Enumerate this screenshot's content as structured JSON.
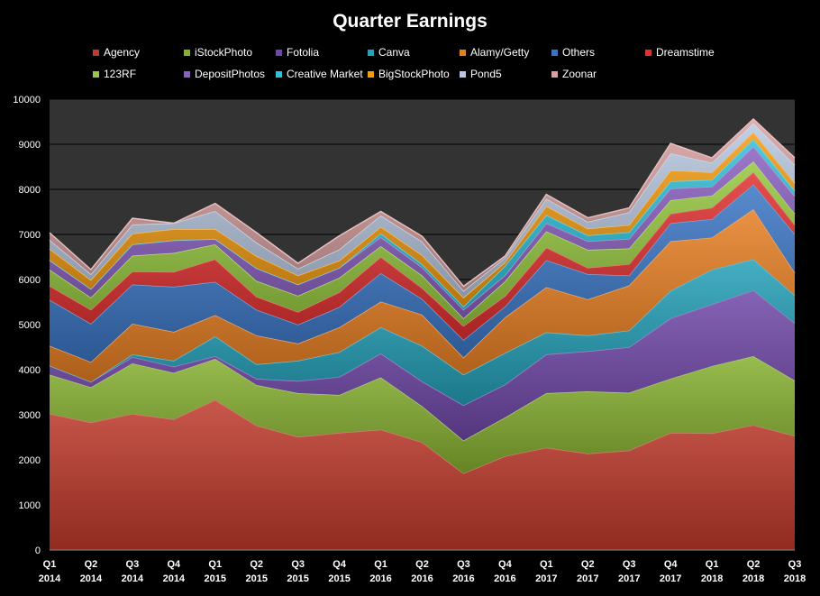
{
  "chart_data": {
    "type": "area",
    "stacked": true,
    "title": "Quarter Earnings",
    "xlabel": "",
    "ylabel": "",
    "ylim": [
      0,
      10000
    ],
    "yticks": [
      0,
      1000,
      2000,
      3000,
      4000,
      5000,
      6000,
      7000,
      8000,
      9000,
      10000
    ],
    "grid": "horizontal",
    "legend_position": "top",
    "plot_background": "#333333",
    "categories": [
      [
        "Q1",
        "2014"
      ],
      [
        "Q2",
        "2014"
      ],
      [
        "Q3",
        "2014"
      ],
      [
        "Q4",
        "2014"
      ],
      [
        "Q1",
        "2015"
      ],
      [
        "Q2",
        "2015"
      ],
      [
        "Q3",
        "2015"
      ],
      [
        "Q4",
        "2015"
      ],
      [
        "Q1",
        "2016"
      ],
      [
        "Q2",
        "2016"
      ],
      [
        "Q3",
        "2016"
      ],
      [
        "Q4",
        "2016"
      ],
      [
        "Q1",
        "2017"
      ],
      [
        "Q2",
        "2017"
      ],
      [
        "Q3",
        "2017"
      ],
      [
        "Q4",
        "2017"
      ],
      [
        "Q1",
        "2018"
      ],
      [
        "Q2",
        "2018"
      ],
      [
        "Q3",
        "2018"
      ]
    ],
    "series": [
      {
        "name": "Agency",
        "color": "#c0392b",
        "values": [
          3020,
          2830,
          3020,
          2900,
          3330,
          2760,
          2510,
          2600,
          2670,
          2390,
          1700,
          2080,
          2270,
          2140,
          2210,
          2600,
          2590,
          2770,
          2530
        ]
      },
      {
        "name": "iStockPhoto",
        "color": "#86b030",
        "values": [
          870,
          780,
          1120,
          1030,
          910,
          900,
          970,
          840,
          1160,
          800,
          730,
          860,
          1210,
          1380,
          1280,
          1200,
          1490,
          1530,
          1230
        ]
      },
      {
        "name": "Fotolia",
        "color": "#7048a8",
        "values": [
          200,
          120,
          140,
          140,
          60,
          140,
          270,
          400,
          530,
          550,
          780,
          730,
          860,
          890,
          1010,
          1340,
          1370,
          1460,
          1270
        ]
      },
      {
        "name": "Canva",
        "color": "#24a0b8",
        "values": [
          0,
          0,
          60,
          130,
          440,
          320,
          450,
          550,
          580,
          790,
          680,
          700,
          490,
          350,
          370,
          610,
          770,
          690,
          620
        ]
      },
      {
        "name": "Alamy/Getty",
        "color": "#e67e22",
        "values": [
          440,
          440,
          680,
          640,
          470,
          640,
          380,
          550,
          570,
          690,
          380,
          790,
          1000,
          800,
          1000,
          1100,
          710,
          1110,
          500
        ]
      },
      {
        "name": "Others",
        "color": "#3a75c4",
        "values": [
          1020,
          850,
          870,
          1000,
          740,
          570,
          420,
          450,
          630,
          350,
          390,
          240,
          600,
          560,
          220,
          400,
          410,
          550,
          860
        ]
      },
      {
        "name": "Dreamstime",
        "color": "#e03030",
        "values": [
          310,
          310,
          290,
          330,
          500,
          290,
          280,
          330,
          360,
          240,
          310,
          230,
          280,
          140,
          250,
          210,
          250,
          270,
          200
        ]
      },
      {
        "name": "123RF",
        "color": "#96c840",
        "values": [
          360,
          270,
          350,
          420,
          330,
          350,
          360,
          320,
          240,
          280,
          170,
          330,
          360,
          400,
          350,
          300,
          270,
          240,
          250
        ]
      },
      {
        "name": "DepositPhotos",
        "color": "#8a60c0",
        "values": [
          210,
          190,
          250,
          280,
          120,
          280,
          250,
          220,
          200,
          180,
          190,
          130,
          180,
          190,
          210,
          260,
          200,
          330,
          390
        ]
      },
      {
        "name": "Creative Market",
        "color": "#30c0d8",
        "values": [
          0,
          0,
          0,
          0,
          0,
          0,
          0,
          0,
          80,
          70,
          70,
          210,
          180,
          130,
          150,
          160,
          150,
          160,
          120
        ]
      },
      {
        "name": "BigStockPhoto",
        "color": "#f39c12",
        "values": [
          250,
          200,
          240,
          250,
          220,
          270,
          200,
          160,
          150,
          200,
          200,
          80,
          200,
          150,
          160,
          240,
          170,
          160,
          170
        ]
      },
      {
        "name": "Pond5",
        "color": "#b8c8e0",
        "values": [
          200,
          130,
          200,
          130,
          400,
          300,
          150,
          250,
          250,
          300,
          150,
          100,
          160,
          150,
          280,
          380,
          210,
          200,
          400
        ]
      },
      {
        "name": "Zoonar",
        "color": "#d8a0a0",
        "values": [
          160,
          100,
          140,
          0,
          170,
          220,
          120,
          300,
          90,
          120,
          100,
          40,
          100,
          90,
          100,
          220,
          110,
          90,
          160
        ]
      }
    ]
  }
}
